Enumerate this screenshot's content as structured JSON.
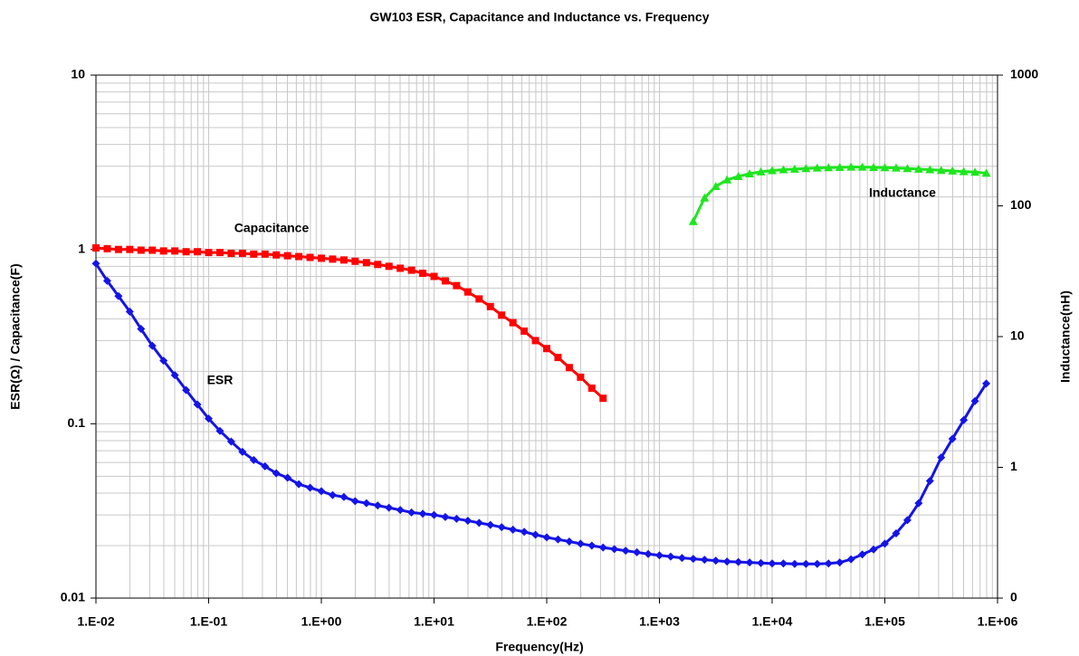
{
  "chart_data": {
    "type": "line",
    "title": "GW103 ESR, Capacitance and Inductance vs. Frequency",
    "x_label": "Frequency(Hz)",
    "y_label": "ESR(Ω) / Capacitance(F)",
    "y2_label": "Inductance(nH)",
    "x_log": true,
    "y_log": true,
    "y2_log": true,
    "grid": true,
    "xlim": [
      0.01,
      1000000
    ],
    "xticks": [
      {
        "value": 0.01,
        "label": "1.E-02"
      },
      {
        "value": 0.1,
        "label": "1.E-01"
      },
      {
        "value": 1,
        "label": "1.E+00"
      },
      {
        "value": 10,
        "label": "1.E+01"
      },
      {
        "value": 100,
        "label": "1.E+02"
      },
      {
        "value": 1000,
        "label": "1.E+03"
      },
      {
        "value": 10000,
        "label": "1.E+04"
      },
      {
        "value": 100000,
        "label": "1.E+05"
      },
      {
        "value": 1000000,
        "label": "1.E+06"
      }
    ],
    "ylim": [
      0.01,
      10
    ],
    "yticks": [
      0.01,
      0.1,
      1,
      10
    ],
    "y2lim": [
      0.1,
      1000
    ],
    "y2ticks": [
      {
        "value": 0.1,
        "label": "0"
      },
      1,
      10,
      100,
      1000
    ],
    "annotations": [
      "Capacitance",
      "ESR",
      "Inductance"
    ],
    "series": [
      {
        "name": "ESR",
        "color": "#1414e6",
        "marker": "diamond",
        "x": [
          0.01,
          0.01259,
          0.01585,
          0.01995,
          0.02512,
          0.03162,
          0.03981,
          0.05012,
          0.0631,
          0.07943,
          0.1,
          0.1259,
          0.1585,
          0.1995,
          0.2512,
          0.3162,
          0.3981,
          0.5012,
          0.631,
          0.7943,
          1,
          1.259,
          1.585,
          1.995,
          2.512,
          3.162,
          3.981,
          5.012,
          6.31,
          7.943,
          10,
          12.59,
          15.85,
          19.95,
          25.12,
          31.62,
          39.81,
          50.12,
          63.1,
          79.43,
          100,
          125.9,
          158.5,
          199.5,
          251.2,
          316.2,
          398.1,
          501.2,
          631,
          794.3,
          1000,
          1259,
          1585,
          1995,
          2512,
          3162,
          3981,
          5012,
          6310,
          7943,
          10000,
          12590,
          15850,
          19950,
          25120,
          31620,
          39810,
          50120,
          63100,
          79430,
          100000,
          125900,
          158500,
          199500,
          251200,
          316200,
          398100,
          501200,
          631000,
          794300
        ],
        "values": [
          0.83,
          0.66,
          0.54,
          0.44,
          0.35,
          0.28,
          0.23,
          0.19,
          0.156,
          0.129,
          0.107,
          0.091,
          0.079,
          0.069,
          0.062,
          0.057,
          0.052,
          0.049,
          0.045,
          0.043,
          0.041,
          0.039,
          0.038,
          0.036,
          0.035,
          0.034,
          0.033,
          0.032,
          0.031,
          0.0305,
          0.03,
          0.0292,
          0.0285,
          0.0278,
          0.027,
          0.0263,
          0.0255,
          0.0247,
          0.024,
          0.0231,
          0.0223,
          0.0217,
          0.0211,
          0.0205,
          0.02,
          0.0195,
          0.0191,
          0.0187,
          0.0183,
          0.0179,
          0.0176,
          0.0173,
          0.017,
          0.0168,
          0.0166,
          0.0164,
          0.0162,
          0.0161,
          0.016,
          0.0159,
          0.0158,
          0.0158,
          0.0157,
          0.0157,
          0.0157,
          0.0158,
          0.016,
          0.0167,
          0.0178,
          0.019,
          0.0205,
          0.0235,
          0.028,
          0.035,
          0.047,
          0.064,
          0.082,
          0.105,
          0.135,
          0.17
        ]
      },
      {
        "name": "Capacitance",
        "color": "#ff0000",
        "marker": "square",
        "x": [
          0.01,
          0.01259,
          0.01585,
          0.01995,
          0.02512,
          0.03162,
          0.03981,
          0.05012,
          0.0631,
          0.07943,
          0.1,
          0.1259,
          0.1585,
          0.1995,
          0.2512,
          0.3162,
          0.3981,
          0.5012,
          0.631,
          0.7943,
          1,
          1.259,
          1.585,
          1.995,
          2.512,
          3.162,
          3.981,
          5.012,
          6.31,
          7.943,
          10,
          12.59,
          15.85,
          19.95,
          25.12,
          31.62,
          39.81,
          50.12,
          63.1,
          79.43,
          100,
          125.9,
          158.5,
          199.5,
          251.2,
          316.2
        ],
        "values": [
          1.02,
          1.01,
          1.0,
          1.0,
          0.99,
          0.99,
          0.98,
          0.98,
          0.97,
          0.97,
          0.96,
          0.96,
          0.95,
          0.95,
          0.94,
          0.94,
          0.93,
          0.92,
          0.91,
          0.9,
          0.89,
          0.88,
          0.87,
          0.855,
          0.84,
          0.82,
          0.8,
          0.78,
          0.76,
          0.73,
          0.7,
          0.66,
          0.62,
          0.57,
          0.52,
          0.47,
          0.42,
          0.38,
          0.34,
          0.3,
          0.27,
          0.24,
          0.21,
          0.185,
          0.16,
          0.14
        ]
      },
      {
        "name": "Inductance",
        "color": "#1ee61e",
        "marker": "triangle",
        "axis": "y2",
        "x": [
          1995,
          2512,
          3162,
          3981,
          5012,
          6310,
          7943,
          10000,
          12590,
          15850,
          19950,
          25120,
          31620,
          39810,
          50120,
          63100,
          79430,
          100000,
          125900,
          158500,
          199500,
          251200,
          316200,
          398100,
          501200,
          631000,
          794300
        ],
        "values": [
          76,
          115,
          141,
          158,
          168,
          176,
          182,
          186,
          189,
          191,
          193,
          195,
          196,
          197,
          198,
          198,
          197,
          196,
          195,
          193,
          191,
          189,
          187,
          185,
          183,
          181,
          178
        ]
      }
    ]
  }
}
